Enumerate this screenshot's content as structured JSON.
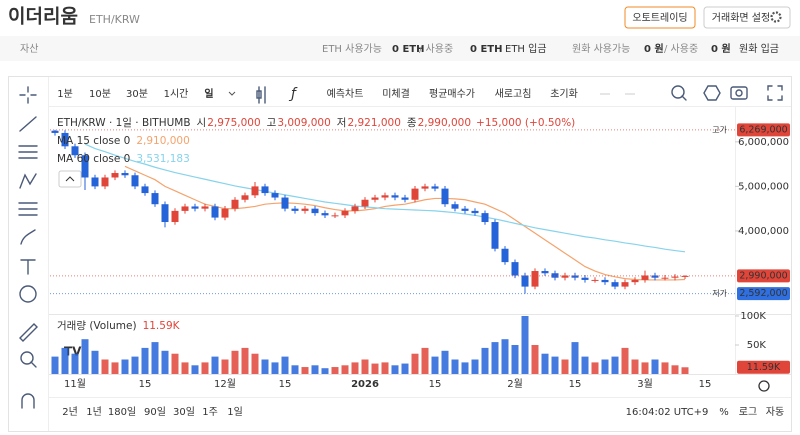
{
  "header": {
    "title": "이더리움",
    "pair": "ETH/KRW",
    "buttons": [
      "오토트레이딩",
      "거래화면 설정"
    ]
  },
  "account": {
    "label": "자산",
    "items": [
      "ETH 사용가능",
      "0 ETH",
      "/ 사용중",
      "0 ETH",
      "ETH 입금",
      "원화 사용가능",
      "0 원",
      "/ 사용중",
      "0 원",
      "원화 입금"
    ]
  },
  "toolbar": {
    "intervals": [
      "1분",
      "10분",
      "30분",
      "1시간",
      "일"
    ],
    "actions": [
      "예측차트",
      "미체결",
      "평균매수가",
      "새로고침",
      "초기화"
    ]
  },
  "timeranges": [
    "2년",
    "1년",
    "180일",
    "90일",
    "30일",
    "1주",
    "1일"
  ],
  "footer": {
    "time": "16:04:02 UTC+9",
    "percent": "%",
    "log": "로그",
    "auto": "자동"
  },
  "chart_data": {
    "type": "candlestick",
    "title": "ETH/KRW · 1일 · BITHUMB",
    "ohlc_legend": [
      {
        "label": "시",
        "text": "2,975,000"
      },
      {
        "label": "고",
        "text": "3,009,000"
      },
      {
        "label": "저",
        "text": "2,921,000"
      },
      {
        "label": "종",
        "text": "2,990,000"
      }
    ],
    "change": "+15,000 (+0.50%)",
    "up_color": "#e0453a",
    "down_color": "#2563d9",
    "categories": [
      null,
      null,
      "11월",
      null,
      null,
      null,
      null,
      null,
      null,
      "15",
      null,
      null,
      null,
      null,
      null,
      null,
      null,
      "12월",
      null,
      null,
      null,
      null,
      null,
      "15",
      null,
      null,
      null,
      null,
      null,
      null,
      null,
      "2026",
      null,
      null,
      null,
      null,
      null,
      null,
      "15",
      null,
      null,
      null,
      null,
      null,
      null,
      null,
      "2월",
      null,
      null,
      null,
      null,
      null,
      "15",
      null,
      null,
      null,
      null,
      null,
      null,
      "3월",
      null,
      null,
      null,
      null,
      null,
      "15",
      null
    ],
    "open": [
      6250000,
      6200000,
      5900000,
      5700000,
      5200000,
      5000000,
      5200000,
      5300000,
      5250000,
      5000000,
      4850000,
      4600000,
      4200000,
      4450000,
      4550000,
      4500000,
      4550000,
      4300000,
      4500000,
      4700000,
      4800000,
      5000000,
      4850000,
      4750000,
      4500000,
      4450000,
      4500000,
      4400000,
      4350000,
      4350000,
      4450000,
      4550000,
      4700000,
      4750000,
      4800000,
      4750000,
      4700000,
      4950000,
      5000000,
      4950000,
      4600000,
      4500000,
      4450000,
      4400000,
      4200000,
      3600000,
      3300000,
      3000000,
      2750000,
      3100000,
      3050000,
      2950000,
      3000000,
      2950000,
      2900000,
      2900000,
      2850000,
      2750000,
      2850000,
      2900000,
      3000000,
      2950000,
      2950000,
      2975000,
      null,
      null,
      null
    ],
    "high": [
      6269000,
      6260000,
      5960000,
      5760000,
      5260000,
      5260000,
      5360000,
      5360000,
      5310000,
      5060000,
      4910000,
      4660000,
      4510000,
      4610000,
      4610000,
      4610000,
      4610000,
      4560000,
      4760000,
      4860000,
      5100000,
      5060000,
      4910000,
      4810000,
      4560000,
      4560000,
      4560000,
      4460000,
      4410000,
      4510000,
      4610000,
      4760000,
      4810000,
      4860000,
      4860000,
      4810000,
      5010000,
      5060000,
      5060000,
      5010000,
      4660000,
      4560000,
      4510000,
      4460000,
      4260000,
      3660000,
      3360000,
      3060000,
      3160000,
      3160000,
      3110000,
      3060000,
      3060000,
      3010000,
      2960000,
      2960000,
      2910000,
      2910000,
      2960000,
      3110000,
      3060000,
      3010000,
      3030000,
      3009000,
      null,
      null,
      null
    ],
    "low": [
      6140000,
      5840000,
      5640000,
      4920000,
      4940000,
      4940000,
      5140000,
      5190000,
      4940000,
      4790000,
      4540000,
      4080000,
      4140000,
      4390000,
      4440000,
      4440000,
      4240000,
      4240000,
      4440000,
      4640000,
      4740000,
      4790000,
      4690000,
      4440000,
      4390000,
      4390000,
      4340000,
      4290000,
      4290000,
      4290000,
      4390000,
      4490000,
      4640000,
      4690000,
      4690000,
      4640000,
      4640000,
      4890000,
      4890000,
      4540000,
      4440000,
      4390000,
      4340000,
      4140000,
      3540000,
      3240000,
      2940000,
      2592000,
      2690000,
      2990000,
      2890000,
      2890000,
      2890000,
      2840000,
      2840000,
      2790000,
      2690000,
      2690000,
      2790000,
      2840000,
      2890000,
      2890000,
      2890000,
      2921000,
      null,
      null,
      null
    ],
    "close": [
      6200000,
      5900000,
      5700000,
      5200000,
      5000000,
      5200000,
      5300000,
      5250000,
      5000000,
      4850000,
      4600000,
      4200000,
      4450000,
      4550000,
      4500000,
      4550000,
      4300000,
      4500000,
      4700000,
      4800000,
      5000000,
      4850000,
      4750000,
      4500000,
      4450000,
      4500000,
      4400000,
      4350000,
      4350000,
      4450000,
      4550000,
      4700000,
      4750000,
      4800000,
      4750000,
      4700000,
      4950000,
      5000000,
      4950000,
      4600000,
      4500000,
      4450000,
      4400000,
      4200000,
      3600000,
      3300000,
      3000000,
      2750000,
      3100000,
      3050000,
      2950000,
      3000000,
      2950000,
      2900000,
      2900000,
      2850000,
      2750000,
      2850000,
      2900000,
      3000000,
      2950000,
      2950000,
      2975000,
      2990000,
      null,
      null,
      null
    ],
    "series": [
      {
        "name": "MA 15 close 0",
        "color": "#f5a36c",
        "value_label": "2,910,000",
        "values": [
          null,
          null,
          null,
          null,
          null,
          null,
          null,
          5450000,
          5350000,
          5250000,
          5150000,
          5000000,
          4900000,
          4800000,
          4700000,
          4600000,
          4550000,
          4500000,
          4500000,
          4520000,
          4550000,
          4600000,
          4620000,
          4630000,
          4620000,
          4600000,
          4570000,
          4520000,
          4480000,
          4450000,
          4450000,
          4470000,
          4500000,
          4550000,
          4580000,
          4600000,
          4650000,
          4700000,
          4730000,
          4730000,
          4720000,
          4700000,
          4650000,
          4600000,
          4500000,
          4400000,
          4250000,
          4100000,
          3950000,
          3800000,
          3650000,
          3500000,
          3350000,
          3200000,
          3100000,
          3020000,
          2970000,
          2930000,
          2910000,
          2900000,
          2900000,
          2900000,
          2900000,
          2910000,
          null,
          null,
          null
        ]
      },
      {
        "name": "MA 60 close 0",
        "color": "#86d3ec",
        "value_label": "3,531,183",
        "values": [
          null,
          null,
          null,
          5950000,
          5850000,
          5780000,
          5700000,
          5630000,
          5560000,
          5500000,
          5430000,
          5370000,
          5310000,
          5260000,
          5210000,
          5160000,
          5110000,
          5060000,
          5010000,
          4970000,
          4930000,
          4890000,
          4850000,
          4810000,
          4770000,
          4730000,
          4690000,
          4650000,
          4620000,
          4590000,
          4560000,
          4540000,
          4520000,
          4500000,
          4490000,
          4480000,
          4470000,
          4460000,
          4450000,
          4430000,
          4410000,
          4380000,
          4350000,
          4310000,
          4270000,
          4220000,
          4170000,
          4120000,
          4070000,
          4030000,
          3990000,
          3950000,
          3910000,
          3870000,
          3840000,
          3800000,
          3770000,
          3730000,
          3700000,
          3660000,
          3630000,
          3590000,
          3560000,
          3531183,
          null,
          null,
          null
        ]
      }
    ],
    "ylim": [
      2180000,
      6760000
    ],
    "yticks": [
      {
        "value": 6000000,
        "label": "6,000,000"
      },
      {
        "value": 5000000,
        "label": "5,000,000"
      },
      {
        "value": 4000000,
        "label": "4,000,000"
      }
    ],
    "price_markers": [
      {
        "label": "고가",
        "value": 6269000,
        "value_label": "6,269,000",
        "color": "#e0453a"
      },
      {
        "value": 2990000,
        "value_label": "2,990,000",
        "color": "#e0453a"
      },
      {
        "label": "저가",
        "value": 2592000,
        "value_label": "2,592,000",
        "color": "#2f6fdf"
      }
    ],
    "volume": {
      "name": "거래량 (Volume)",
      "value_label": "11.59K",
      "ylim": [
        0,
        100000
      ],
      "yticks": [
        {
          "value": 100000,
          "label": "100K"
        },
        {
          "value": 50000,
          "label": "50K"
        }
      ],
      "values": [
        30000,
        45000,
        35000,
        60000,
        40000,
        25000,
        20000,
        25000,
        30000,
        45000,
        55000,
        40000,
        35000,
        20000,
        15000,
        20000,
        30000,
        25000,
        40000,
        45000,
        35000,
        25000,
        20000,
        30000,
        15000,
        12000,
        15000,
        10000,
        12000,
        15000,
        20000,
        25000,
        18000,
        20000,
        15000,
        18000,
        35000,
        45000,
        30000,
        40000,
        25000,
        20000,
        25000,
        45000,
        55000,
        60000,
        50000,
        100000,
        50000,
        35000,
        30000,
        25000,
        55000,
        30000,
        20000,
        25000,
        30000,
        45000,
        25000,
        20000,
        25000,
        20000,
        15000,
        11590,
        null,
        null,
        null
      ]
    }
  }
}
